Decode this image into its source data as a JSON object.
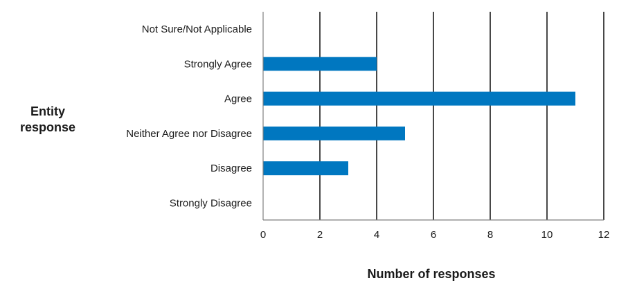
{
  "chart_data": {
    "type": "bar",
    "orientation": "horizontal",
    "categories": [
      "Not Sure/Not Applicable",
      "Strongly Agree",
      "Agree",
      "Neither Agree nor Disagree",
      "Disagree",
      "Strongly Disagree"
    ],
    "values": [
      0,
      4,
      11,
      5,
      3,
      0
    ],
    "xlabel": "Number of responses",
    "ylabel_lines": [
      "Entity",
      "response"
    ],
    "xlim": [
      0,
      12
    ],
    "xticks": [
      0,
      2,
      4,
      6,
      8,
      10,
      12
    ],
    "grid": "vertical",
    "legend": "none",
    "bar_color": "#0077c0"
  }
}
